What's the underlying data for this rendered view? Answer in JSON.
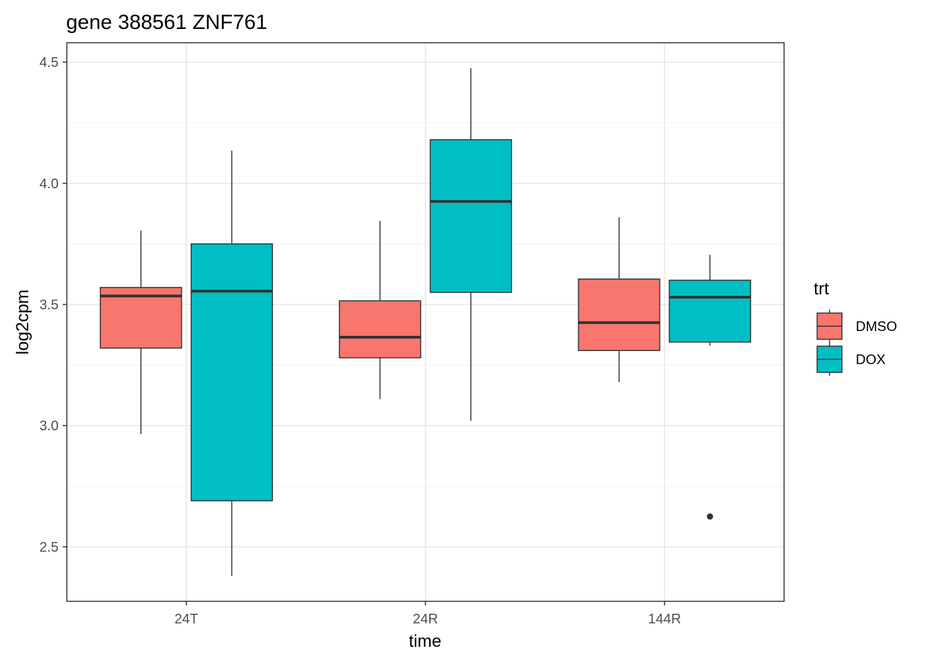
{
  "chart_data": {
    "type": "boxplot",
    "title": "gene 388561 ZNF761",
    "xlabel": "time",
    "ylabel": "log2cpm",
    "categories": [
      "24T",
      "24R",
      "144R"
    ],
    "ylim": [
      2.275,
      4.58
    ],
    "yticks": [
      2.5,
      3.0,
      3.5,
      4.0,
      4.5
    ],
    "ytick_labels": [
      "2.5",
      "3.0",
      "3.5",
      "4.0",
      "4.5"
    ],
    "grid": true,
    "legend": {
      "title": "trt",
      "position": "right"
    },
    "series": [
      {
        "name": "DMSO",
        "color": "#F8766D",
        "boxes": [
          {
            "category": "24T",
            "min": 2.965,
            "q1": 3.32,
            "median": 3.535,
            "q3": 3.57,
            "max": 3.805,
            "outliers": []
          },
          {
            "category": "24R",
            "min": 3.11,
            "q1": 3.28,
            "median": 3.365,
            "q3": 3.515,
            "max": 3.845,
            "outliers": []
          },
          {
            "category": "144R",
            "min": 3.18,
            "q1": 3.31,
            "median": 3.425,
            "q3": 3.605,
            "max": 3.86,
            "outliers": []
          }
        ]
      },
      {
        "name": "DOX",
        "color": "#00BFC4",
        "boxes": [
          {
            "category": "24T",
            "min": 2.38,
            "q1": 2.69,
            "median": 3.555,
            "q3": 3.75,
            "max": 4.135,
            "outliers": []
          },
          {
            "category": "24R",
            "min": 3.02,
            "q1": 3.55,
            "median": 3.925,
            "q3": 4.18,
            "max": 4.475,
            "outliers": []
          },
          {
            "category": "144R",
            "min": 3.33,
            "q1": 3.345,
            "median": 3.53,
            "q3": 3.6,
            "max": 3.705,
            "outliers": [
              2.625
            ]
          }
        ]
      }
    ]
  }
}
